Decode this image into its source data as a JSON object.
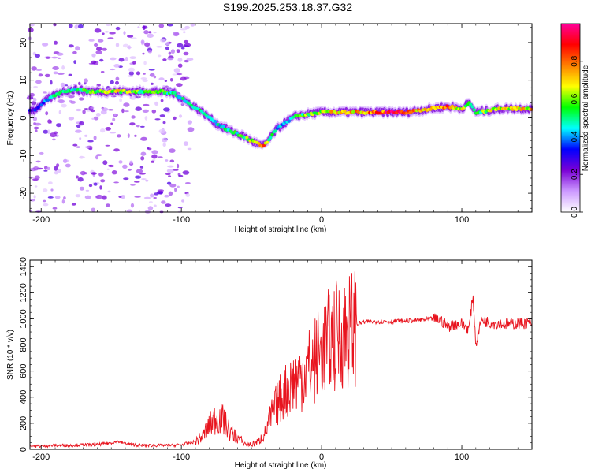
{
  "title": "S199.2025.253.18.37.G32",
  "chart_data": [
    {
      "type": "heatmap",
      "name": "spectrogram",
      "xlabel": "Height of straight line (km)",
      "ylabel": "Frequency (Hz)",
      "xlim": [
        -208,
        150
      ],
      "ylim": [
        -25,
        25
      ],
      "xticks": [
        -200,
        -100,
        0,
        100
      ],
      "yticks": [
        -20,
        -10,
        0,
        10,
        20
      ],
      "colorbar": {
        "label": "Normalized spectral amplitude",
        "range": [
          0,
          1
        ],
        "ticks": [
          0.0,
          0.2,
          0.4,
          0.6,
          0.8
        ],
        "colors": [
          "#ffffff",
          "#cc99ff",
          "#7a00d6",
          "#0000ff",
          "#00ffff",
          "#00ff00",
          "#ffff00",
          "#ff8000",
          "#ff0000",
          "#ff0099"
        ]
      },
      "ridge": {
        "heights": [
          -205,
          -195,
          -185,
          -175,
          -165,
          -155,
          -145,
          -135,
          -125,
          -115,
          -105,
          -95,
          -85,
          -75,
          -65,
          -55,
          -48,
          -42,
          -38,
          -32,
          -25,
          -18,
          -10,
          0,
          10,
          20,
          30,
          40,
          50,
          60,
          70,
          80,
          90,
          100,
          105,
          110,
          120,
          130,
          140,
          150
        ],
        "frequencies": [
          2,
          5,
          7,
          7.5,
          7,
          7,
          7,
          7,
          7,
          7,
          6.5,
          4,
          1.5,
          -1.5,
          -3.5,
          -5,
          -6.5,
          -7.5,
          -6,
          -3,
          -1,
          0.5,
          1,
          1.5,
          1.5,
          1.5,
          1.5,
          1.5,
          1.5,
          1.5,
          2,
          2.5,
          3,
          2.5,
          4,
          1.5,
          2,
          2.5,
          2.5,
          2.5
        ],
        "amplitudes": [
          0.3,
          0.45,
          0.5,
          0.5,
          0.55,
          0.6,
          0.65,
          0.6,
          0.55,
          0.55,
          0.5,
          0.45,
          0.5,
          0.45,
          0.5,
          0.55,
          0.7,
          0.85,
          0.6,
          0.45,
          0.45,
          0.5,
          0.6,
          0.65,
          0.7,
          0.75,
          0.75,
          0.85,
          0.9,
          0.9,
          0.7,
          0.75,
          0.8,
          0.65,
          0.6,
          0.5,
          0.65,
          0.65,
          0.7,
          0.7
        ]
      }
    },
    {
      "type": "line",
      "name": "snr",
      "xlabel": "Height of straight line (km)",
      "ylabel": "SNR (10 * v/v)",
      "xlim": [
        -208,
        150
      ],
      "ylim": [
        0,
        1450
      ],
      "xticks": [
        -200,
        -100,
        0,
        100
      ],
      "yticks": [
        0,
        200,
        400,
        600,
        800,
        1000,
        1200,
        1400
      ],
      "color": "#e8141e",
      "series": [
        {
          "name": "SNR",
          "x": [
            -208,
            -200,
            -190,
            -180,
            -170,
            -160,
            -150,
            -145,
            -140,
            -130,
            -120,
            -110,
            -100,
            -90,
            -85,
            -80,
            -75,
            -70,
            -65,
            -60,
            -55,
            -50,
            -45,
            -40,
            -35,
            -30,
            -25,
            -20,
            -15,
            -10,
            -5,
            0,
            5,
            10,
            15,
            20,
            25,
            30,
            40,
            50,
            60,
            70,
            80,
            85,
            90,
            95,
            100,
            105,
            108,
            110,
            113,
            115,
            120,
            130,
            140,
            150
          ],
          "y": [
            25,
            25,
            30,
            30,
            35,
            35,
            50,
            60,
            45,
            30,
            30,
            30,
            35,
            60,
            100,
            180,
            250,
            220,
            130,
            90,
            45,
            35,
            60,
            130,
            280,
            380,
            460,
            520,
            560,
            620,
            680,
            760,
            820,
            870,
            900,
            920,
            960,
            975,
            980,
            980,
            985,
            990,
            1000,
            990,
            940,
            960,
            960,
            920,
            1180,
            800,
            960,
            990,
            970,
            960,
            965,
            970
          ]
        }
      ]
    }
  ]
}
